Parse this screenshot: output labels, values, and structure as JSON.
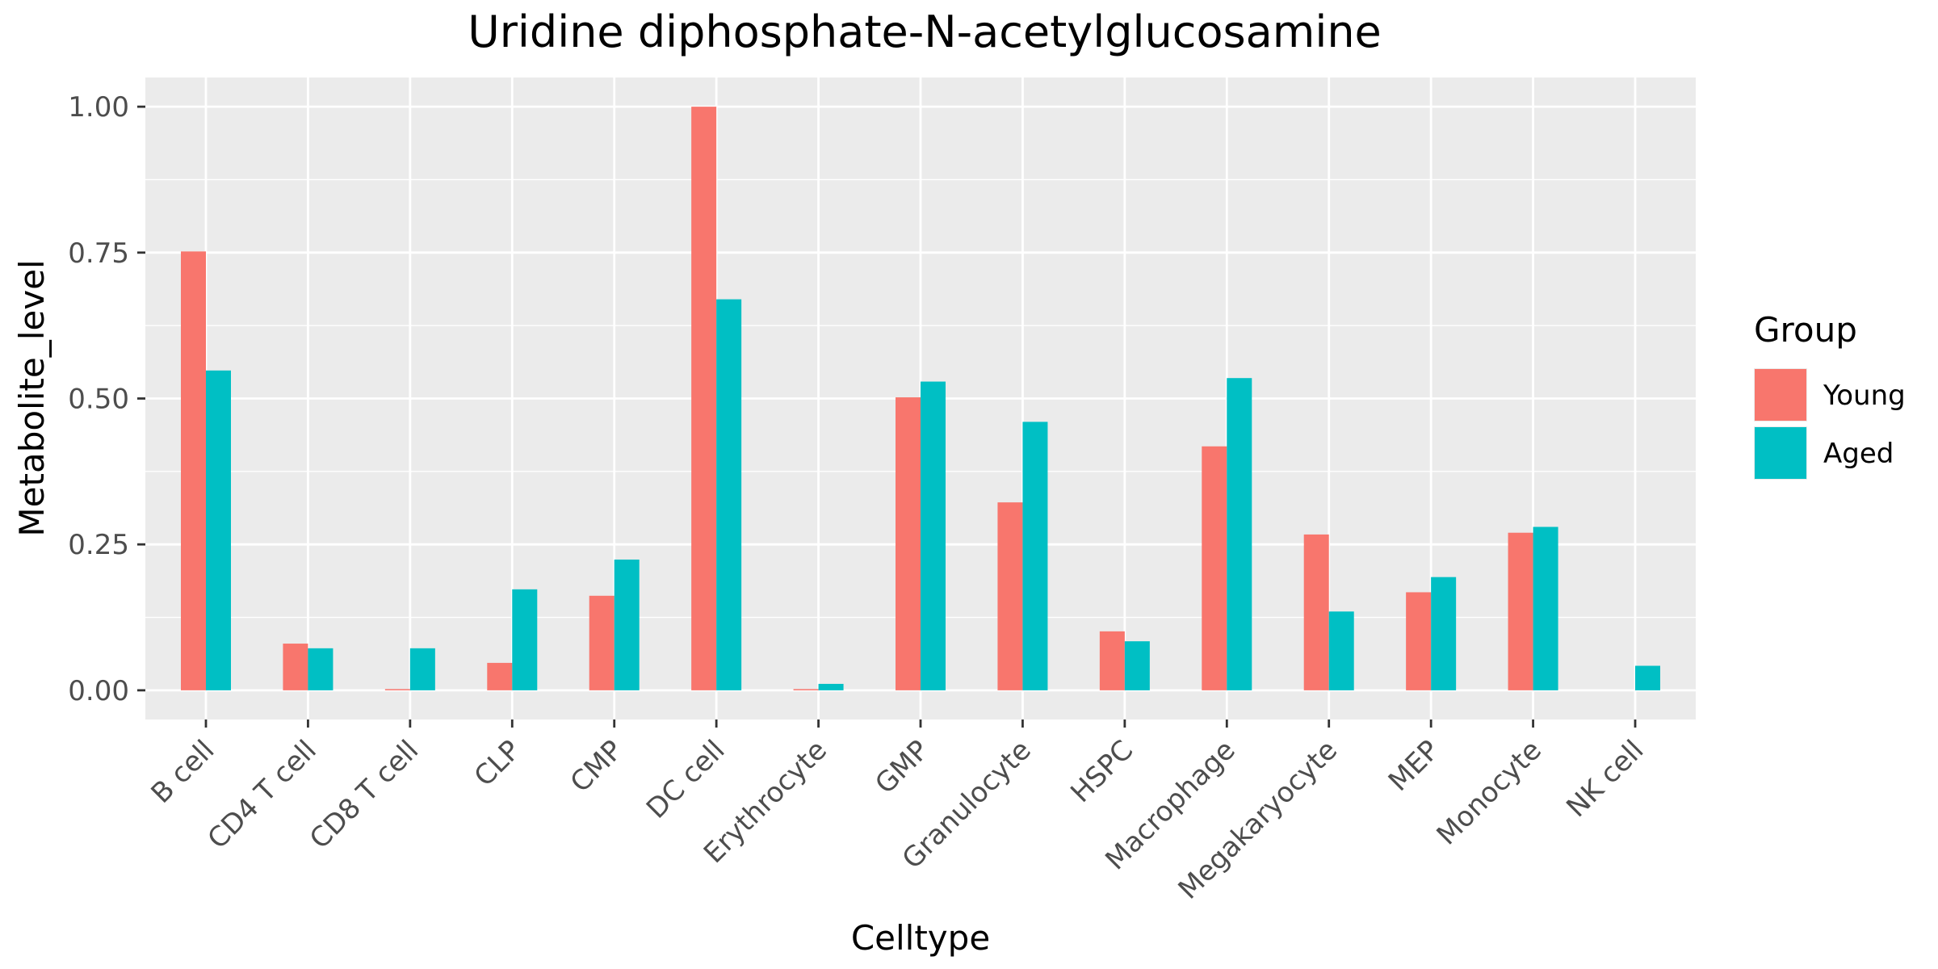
{
  "chart_data": {
    "type": "bar",
    "title": "Uridine diphosphate-N-acetylglucosamine",
    "xlabel": "Celltype",
    "ylabel": "Metabolite_level",
    "ylim": [
      -0.05,
      1.05
    ],
    "yticks": [
      0.0,
      0.25,
      0.5,
      0.75,
      1.0
    ],
    "ytick_labels": [
      "0.00",
      "0.25",
      "0.50",
      "0.75",
      "1.00"
    ],
    "grid": true,
    "legend_title": "Group",
    "legend_position": "right",
    "categories": [
      "B cell",
      "CD4 T cell",
      "CD8 T cell",
      "CLP",
      "CMP",
      "DC cell",
      "Erythrocyte",
      "GMP",
      "Granulocyte",
      "HSPC",
      "Macrophage",
      "Megakaryocyte",
      "MEP",
      "Monocyte",
      "NK cell"
    ],
    "series": [
      {
        "name": "Young",
        "color": "#F8766D",
        "values": [
          0.752,
          0.08,
          0.002,
          0.047,
          0.162,
          1.0,
          0.002,
          0.502,
          0.322,
          0.101,
          0.418,
          0.267,
          0.168,
          0.27,
          null
        ]
      },
      {
        "name": "Aged",
        "color": "#00BFC4",
        "values": [
          0.548,
          0.072,
          0.072,
          0.173,
          0.224,
          0.67,
          0.011,
          0.529,
          0.46,
          0.084,
          0.535,
          0.135,
          0.194,
          0.28,
          0.042
        ]
      }
    ]
  }
}
